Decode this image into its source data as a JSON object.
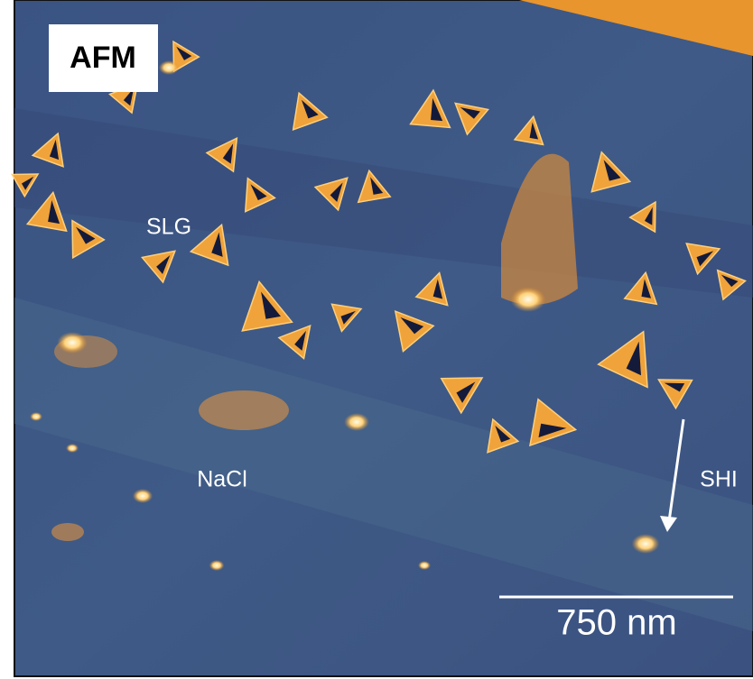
{
  "panel_label": "AFM",
  "regions": {
    "graphene": "SLG",
    "substrate": "NaCl",
    "ion_impact": "SHI"
  },
  "scale_bar": "750 nm"
}
